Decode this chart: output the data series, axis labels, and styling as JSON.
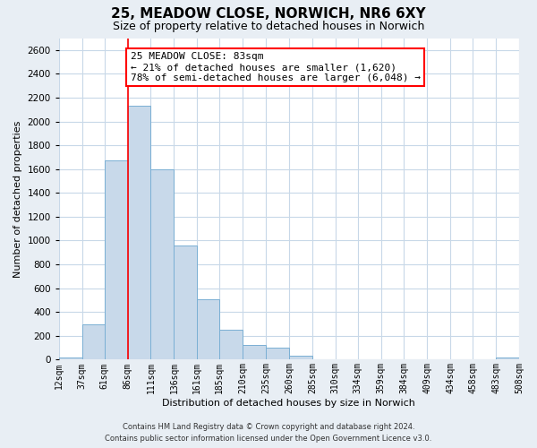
{
  "title": "25, MEADOW CLOSE, NORWICH, NR6 6XY",
  "subtitle": "Size of property relative to detached houses in Norwich",
  "xlabel": "Distribution of detached houses by size in Norwich",
  "ylabel": "Number of detached properties",
  "bar_color": "#c8d9ea",
  "bar_edge_color": "#7aafd4",
  "bins": [
    12,
    37,
    61,
    86,
    111,
    136,
    161,
    185,
    210,
    235,
    260,
    285,
    310,
    334,
    359,
    384,
    409,
    434,
    458,
    483,
    508
  ],
  "counts": [
    20,
    300,
    1670,
    2130,
    1600,
    960,
    510,
    255,
    125,
    100,
    35,
    5,
    0,
    5,
    0,
    5,
    0,
    0,
    0,
    20
  ],
  "tick_labels": [
    "12sqm",
    "37sqm",
    "61sqm",
    "86sqm",
    "111sqm",
    "136sqm",
    "161sqm",
    "185sqm",
    "210sqm",
    "235sqm",
    "260sqm",
    "285sqm",
    "310sqm",
    "334sqm",
    "359sqm",
    "384sqm",
    "409sqm",
    "434sqm",
    "458sqm",
    "483sqm",
    "508sqm"
  ],
  "ylim": [
    0,
    2700
  ],
  "yticks": [
    0,
    200,
    400,
    600,
    800,
    1000,
    1200,
    1400,
    1600,
    1800,
    2000,
    2200,
    2400,
    2600
  ],
  "property_line_x": 86,
  "annotation_title": "25 MEADOW CLOSE: 83sqm",
  "annotation_line1": "← 21% of detached houses are smaller (1,620)",
  "annotation_line2": "78% of semi-detached houses are larger (6,048) →",
  "footer_line1": "Contains HM Land Registry data © Crown copyright and database right 2024.",
  "footer_line2": "Contains public sector information licensed under the Open Government Licence v3.0.",
  "background_color": "#e8eef4",
  "plot_bg_color": "#ffffff",
  "grid_color": "#c8d8e8",
  "title_fontsize": 11,
  "subtitle_fontsize": 9,
  "ylabel_fontsize": 8,
  "xlabel_fontsize": 8,
  "tick_fontsize": 7,
  "ytick_fontsize": 7.5,
  "footer_fontsize": 6,
  "ann_fontsize": 8
}
